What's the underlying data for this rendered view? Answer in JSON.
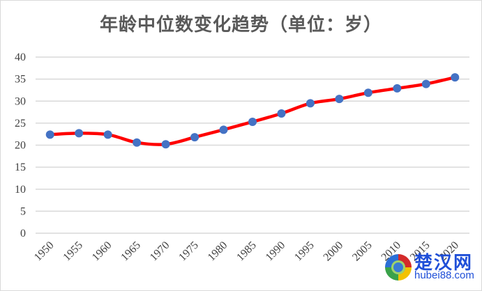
{
  "chart_data": {
    "type": "line",
    "title": "年龄中位数变化趋势（单位：岁）",
    "xlabel": "",
    "ylabel": "",
    "categories": [
      "1950",
      "1955",
      "1960",
      "1965",
      "1970",
      "1975",
      "1980",
      "1985",
      "1990",
      "1995",
      "2000",
      "2005",
      "2010",
      "2015",
      "2020"
    ],
    "series": [
      {
        "name": "年龄中位数",
        "values": [
          22.4,
          22.7,
          22.4,
          20.6,
          20.2,
          21.8,
          23.5,
          25.3,
          27.2,
          29.5,
          30.5,
          31.9,
          32.9,
          33.9,
          35.4
        ],
        "line_color": "#ff0000",
        "marker_color": "#4472c4",
        "smooth": true
      }
    ],
    "ylim": [
      0,
      40
    ],
    "yticks": [
      "0",
      "5",
      "10",
      "15",
      "20",
      "25",
      "30",
      "35",
      "40"
    ],
    "grid": true,
    "legend": "none",
    "x_tick_rotation": -45
  },
  "watermark": {
    "name": "楚汉网",
    "url": "hubei88.com"
  }
}
